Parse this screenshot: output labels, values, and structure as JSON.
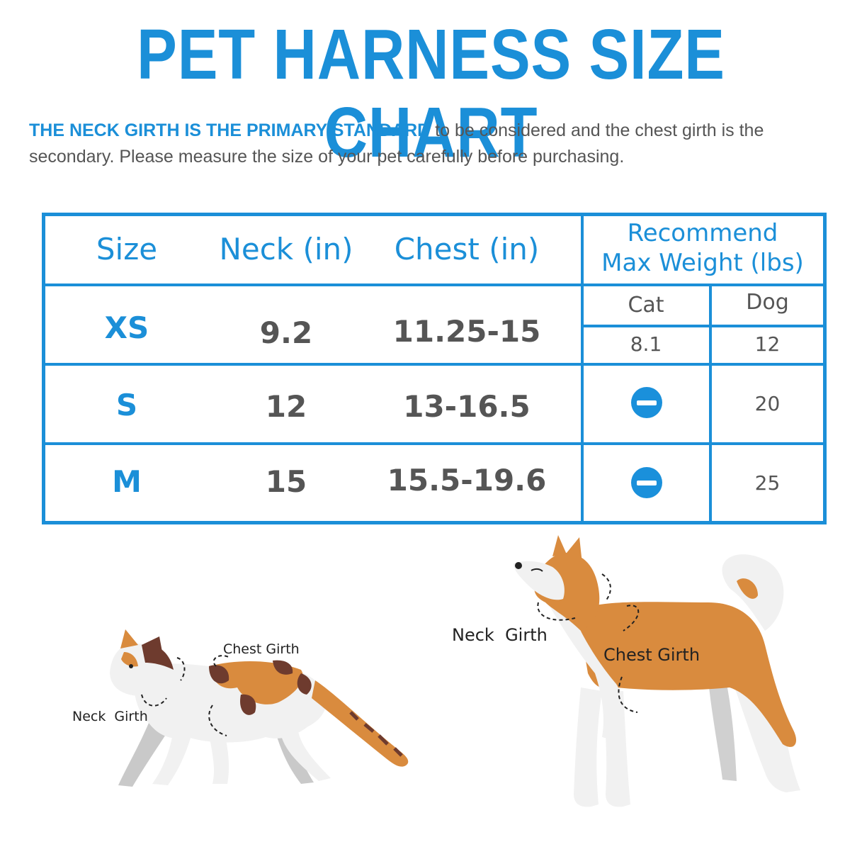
{
  "title": "PET HARNESS SIZE CHART",
  "intro": {
    "emphasis": "THE NECK GIRTH IS THE PRIMARY STANDARD",
    "rest": " to be considered and the chest girth is the secondary. Please measure the size of your pet carefully before purchasing."
  },
  "table": {
    "headers": {
      "size": "Size",
      "neck": "Neck (in)",
      "chest": "Chest (in)",
      "weight_line1": "Recommend",
      "weight_line2": "Max Weight (lbs)",
      "cat": "Cat",
      "dog": "Dog"
    },
    "rows": [
      {
        "size": "XS",
        "neck": "9.2",
        "chest": "11.25-15",
        "cat": "8.1",
        "dog": "12"
      },
      {
        "size": "S",
        "neck": "12",
        "chest": "13-16.5",
        "cat_icon": "no-entry-icon",
        "dog": "20"
      },
      {
        "size": "M",
        "neck": "15",
        "chest": "15.5-19.6",
        "cat_icon": "no-entry-icon",
        "dog": "25"
      }
    ]
  },
  "cat_figure": {
    "neck_label": "Neck  Girth",
    "chest_label": "Chest Girth"
  },
  "dog_figure": {
    "neck_label": "Neck  Girth",
    "chest_label": "Chest Girth"
  },
  "colors": {
    "accent": "#1b8fd8",
    "text": "#555555",
    "fur_orange": "#d98b3e",
    "fur_white": "#f1f1f1",
    "fur_gray": "#c9c9c9",
    "cat_brown": "#6e3b2e"
  }
}
